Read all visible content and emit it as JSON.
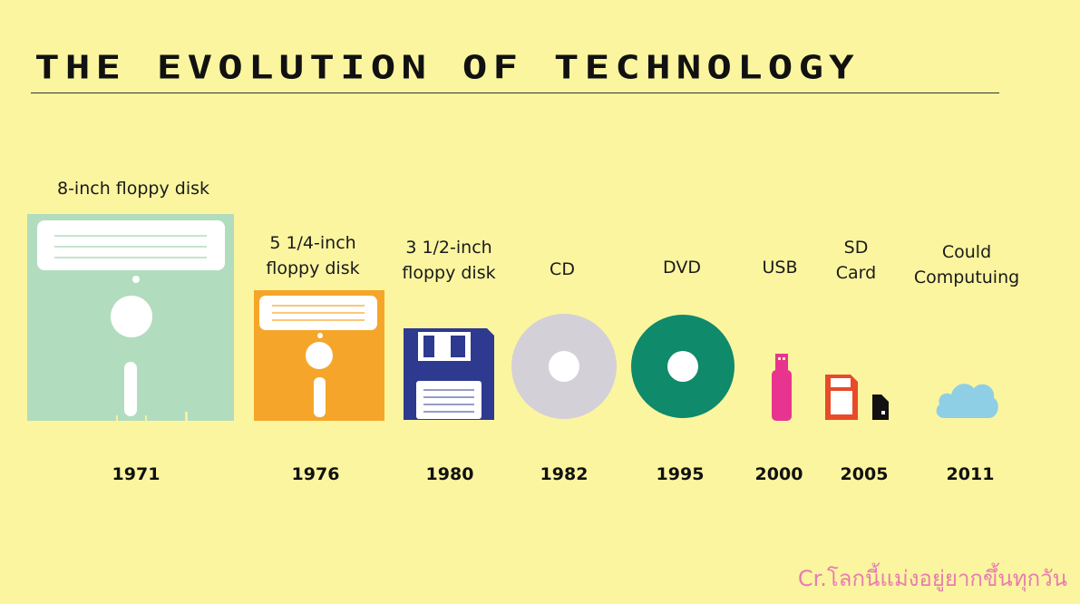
{
  "title": "THE EVOLUTION OF TECHNOLOGY",
  "credit": "Cr.โลกนี้แม่งอยู่ยากขึ้นทุกวัน",
  "items": [
    {
      "label_lines": [
        "8-inch floppy disk"
      ],
      "year": "1971",
      "icon": "floppy-8-inch-icon",
      "color": "#b2dcbe"
    },
    {
      "label_lines": [
        "5 1/4-inch",
        "floppy disk"
      ],
      "year": "1976",
      "icon": "floppy-5-inch-icon",
      "color": "#f5a62a"
    },
    {
      "label_lines": [
        "3 1/2-inch",
        "floppy disk"
      ],
      "year": "1980",
      "icon": "floppy-3-inch-icon",
      "color": "#2e3a8f"
    },
    {
      "label_lines": [
        "CD"
      ],
      "year": "1982",
      "icon": "cd-icon",
      "color": "#d4d0d8"
    },
    {
      "label_lines": [
        "DVD"
      ],
      "year": "1995",
      "icon": "dvd-icon",
      "color": "#0f8a6a"
    },
    {
      "label_lines": [
        "USB"
      ],
      "year": "2000",
      "icon": "usb-icon",
      "color": "#e8348f"
    },
    {
      "label_lines": [
        "SD",
        "Card"
      ],
      "year": "2005",
      "icon": "sd-card-icon",
      "color": "#e84a2a"
    },
    {
      "label_lines": [
        "Could",
        "Computuing"
      ],
      "year": "2011",
      "icon": "cloud-icon",
      "color": "#8ecfe6"
    }
  ]
}
